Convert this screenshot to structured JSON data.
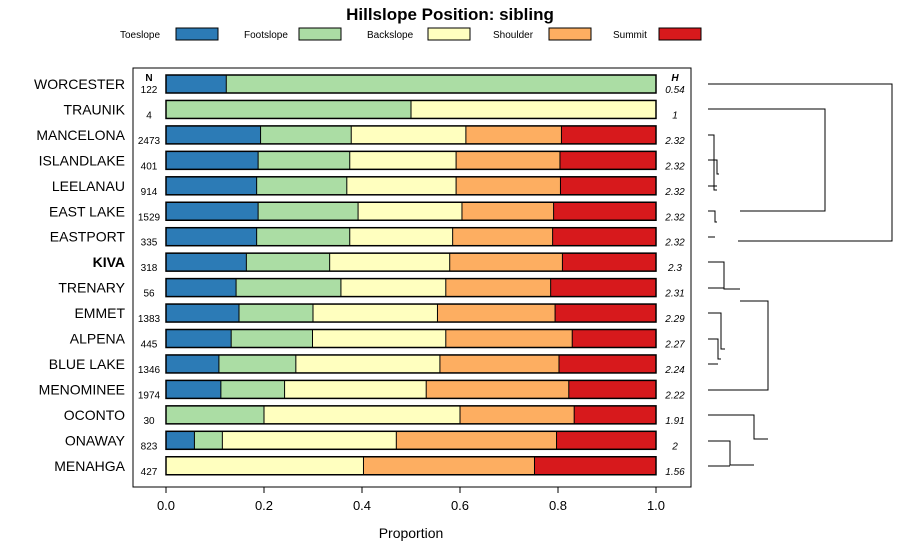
{
  "chart_data": {
    "type": "bar",
    "orientation": "horizontal",
    "stacked": true,
    "title": "Hillslope Position: sibling",
    "xlabel": "Proportion",
    "ylabel": "",
    "xlim": [
      0,
      1
    ],
    "x_ticks": [
      "0.0",
      "0.2",
      "0.4",
      "0.6",
      "0.8",
      "1.0"
    ],
    "legend": [
      {
        "name": "Toeslope",
        "color": "#2c7bb6"
      },
      {
        "name": "Footslope",
        "color": "#abdda4"
      },
      {
        "name": "Backslope",
        "color": "#ffffbf"
      },
      {
        "name": "Shoulder",
        "color": "#fdae61"
      },
      {
        "name": "Summit",
        "color": "#d7191c"
      }
    ],
    "n_header": "N",
    "h_header": "H",
    "highlight": "KIVA",
    "rows": [
      {
        "label": "WORCESTER",
        "n": "122",
        "h": "0.54",
        "values": [
          0.123,
          0.877,
          0,
          0,
          0
        ]
      },
      {
        "label": "TRAUNIK",
        "n": "4",
        "h": "1",
        "values": [
          0,
          0.5,
          0.5,
          0,
          0
        ]
      },
      {
        "label": "MANCELONA",
        "n": "2473",
        "h": "2.32",
        "values": [
          0.193,
          0.185,
          0.234,
          0.195,
          0.193
        ]
      },
      {
        "label": "ISLANDLAKE",
        "n": "401",
        "h": "2.32",
        "values": [
          0.188,
          0.187,
          0.217,
          0.212,
          0.196
        ]
      },
      {
        "label": "LEELANAU",
        "n": "914",
        "h": "2.32",
        "values": [
          0.185,
          0.184,
          0.223,
          0.213,
          0.195
        ]
      },
      {
        "label": "EAST LAKE",
        "n": "1529",
        "h": "2.32",
        "values": [
          0.188,
          0.204,
          0.212,
          0.187,
          0.209
        ]
      },
      {
        "label": "EASTPORT",
        "n": "335",
        "h": "2.32",
        "values": [
          0.185,
          0.19,
          0.21,
          0.204,
          0.211
        ]
      },
      {
        "label": "KIVA",
        "n": "318",
        "h": "2.3",
        "values": [
          0.164,
          0.17,
          0.245,
          0.23,
          0.191
        ]
      },
      {
        "label": "TRENARY",
        "n": "56",
        "h": "2.31",
        "values": [
          0.143,
          0.214,
          0.214,
          0.214,
          0.215
        ]
      },
      {
        "label": "EMMET",
        "n": "1383",
        "h": "2.29",
        "values": [
          0.149,
          0.151,
          0.254,
          0.24,
          0.206
        ]
      },
      {
        "label": "ALPENA",
        "n": "445",
        "h": "2.27",
        "values": [
          0.133,
          0.166,
          0.272,
          0.258,
          0.171
        ]
      },
      {
        "label": "BLUE LAKE",
        "n": "1346",
        "h": "2.24",
        "values": [
          0.108,
          0.157,
          0.294,
          0.243,
          0.198
        ]
      },
      {
        "label": "MENOMINEE",
        "n": "1974",
        "h": "2.22",
        "values": [
          0.112,
          0.13,
          0.289,
          0.291,
          0.178
        ]
      },
      {
        "label": "OCONTO",
        "n": "30",
        "h": "1.91",
        "values": [
          0,
          0.2,
          0.4,
          0.233,
          0.167
        ]
      },
      {
        "label": "ONAWAY",
        "n": "823",
        "h": "2",
        "values": [
          0.058,
          0.057,
          0.355,
          0.327,
          0.203
        ]
      },
      {
        "label": "MENAHGA",
        "n": "427",
        "h": "1.56",
        "values": [
          0,
          0,
          0.403,
          0.349,
          0.248
        ]
      }
    ]
  }
}
